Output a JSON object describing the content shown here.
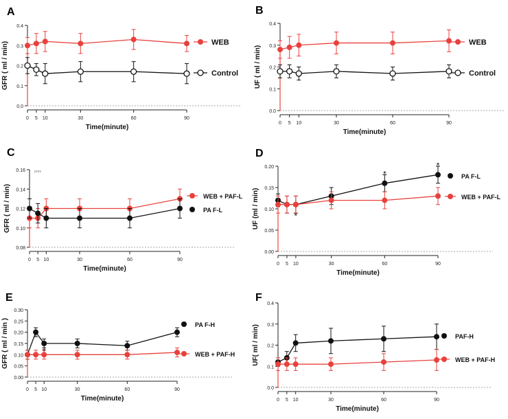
{
  "colors": {
    "red": "#e8413c",
    "black": "#111111",
    "axis": "#222222",
    "baseline": "#888888"
  },
  "chart_data": [
    {
      "panel": "A",
      "type": "line",
      "ylabel": "GFR ( ml / min)",
      "xlabel": "Time(minute)",
      "x": [
        0,
        5,
        10,
        30,
        60,
        90
      ],
      "ylim": [
        0.0,
        0.4
      ],
      "yticks": [
        "0.0",
        "0.1",
        "0.2",
        "0.3",
        "0.4"
      ],
      "xticks": [
        "0",
        "5",
        "10",
        "30",
        "60",
        "90"
      ],
      "annotations": [],
      "series": [
        {
          "name": "WEB",
          "color": "red",
          "marker": "filled",
          "values": [
            0.3,
            0.31,
            0.32,
            0.31,
            0.33,
            0.31
          ],
          "errors": [
            0.04,
            0.05,
            0.05,
            0.05,
            0.05,
            0.04
          ]
        },
        {
          "name": "Control",
          "color": "black",
          "marker": "open",
          "values": [
            0.2,
            0.18,
            0.16,
            0.17,
            0.17,
            0.16
          ],
          "errors": [
            0.04,
            0.03,
            0.05,
            0.05,
            0.05,
            0.05
          ]
        }
      ]
    },
    {
      "panel": "B",
      "type": "line",
      "ylabel": "UF ( ml / min)",
      "xlabel": "Time(minute)",
      "x": [
        0,
        5,
        10,
        30,
        60,
        90
      ],
      "ylim": [
        0.0,
        0.4
      ],
      "yticks": [
        "0.0",
        "0.1",
        "0.2",
        "0.3",
        "0.4"
      ],
      "xticks": [
        "0",
        "5",
        "10",
        "30",
        "60",
        "90"
      ],
      "annotations": [],
      "series": [
        {
          "name": "WEB",
          "color": "red",
          "marker": "filled",
          "values": [
            0.28,
            0.29,
            0.3,
            0.31,
            0.31,
            0.32
          ],
          "errors": [
            0.04,
            0.05,
            0.05,
            0.05,
            0.05,
            0.05
          ]
        },
        {
          "name": "Control",
          "color": "black",
          "marker": "open",
          "values": [
            0.18,
            0.18,
            0.17,
            0.18,
            0.17,
            0.18
          ],
          "errors": [
            0.03,
            0.03,
            0.03,
            0.03,
            0.03,
            0.03
          ]
        }
      ]
    },
    {
      "panel": "C",
      "type": "line",
      "ylabel": "GFR ( ml / min)",
      "xlabel": "Time(minute)",
      "x": [
        0,
        5,
        10,
        30,
        60,
        90
      ],
      "ylim": [
        0.08,
        0.16
      ],
      "yticks": [
        "0.08",
        "0.10",
        "0.12",
        "0.14",
        "0.16"
      ],
      "xticks": [
        "0",
        "5",
        "10",
        "30",
        "60",
        "90"
      ],
      "annotations": [
        {
          "text": "pres",
          "x": 5,
          "y": 0.157
        }
      ],
      "series": [
        {
          "name": "WEB + PAF-L",
          "color": "red",
          "marker": "filled",
          "values": [
            0.11,
            0.11,
            0.12,
            0.12,
            0.12,
            0.13
          ],
          "errors": [
            0.01,
            0.01,
            0.01,
            0.01,
            0.01,
            0.01
          ]
        },
        {
          "name": "PA F-L",
          "color": "black",
          "marker": "filled",
          "values": [
            0.12,
            0.115,
            0.11,
            0.11,
            0.11,
            0.12
          ],
          "errors": [
            0.01,
            0.01,
            0.01,
            0.01,
            0.01,
            0.01
          ]
        }
      ]
    },
    {
      "panel": "D",
      "type": "line",
      "ylabel": "UF (ml / min)",
      "xlabel": "Time(minute)",
      "x": [
        0,
        5,
        10,
        30,
        60,
        90
      ],
      "ylim": [
        0.0,
        0.2
      ],
      "yticks": [
        "0.00",
        "0.05",
        "0.10",
        "0.15",
        "0.20"
      ],
      "xticks": [
        "0",
        "5",
        "10",
        "30",
        "60",
        "90"
      ],
      "annotations": [
        {
          "text": "*",
          "x": 10,
          "y": 0.085
        },
        {
          "text": "*",
          "x": 60,
          "y": 0.183
        },
        {
          "text": "*",
          "x": 90,
          "y": 0.203
        }
      ],
      "series": [
        {
          "name": "PA F-L",
          "color": "black",
          "marker": "filled",
          "values": [
            0.12,
            0.11,
            0.11,
            0.13,
            0.16,
            0.18
          ],
          "errors": [
            0.015,
            0.02,
            0.02,
            0.02,
            0.02,
            0.02
          ]
        },
        {
          "name": "WEB + PAF-L",
          "color": "red",
          "marker": "filled",
          "values": [
            0.11,
            0.11,
            0.11,
            0.12,
            0.12,
            0.13
          ],
          "errors": [
            0.02,
            0.02,
            0.02,
            0.02,
            0.02,
            0.02
          ]
        }
      ]
    },
    {
      "panel": "E",
      "type": "line",
      "ylabel": "GFR ( ml / min )",
      "xlabel": "Time(minute)",
      "x": [
        0,
        5,
        10,
        30,
        60,
        90
      ],
      "ylim": [
        0.0,
        0.3
      ],
      "yticks": [
        "0.00",
        "0.05",
        "0.10",
        "0.15",
        "0.20",
        "0.25",
        "0.30"
      ],
      "xticks": [
        "0",
        "5",
        "10",
        "30",
        "60",
        "90"
      ],
      "annotations": [
        {
          "text": "*",
          "x": 10,
          "y": 0.118
        }
      ],
      "series": [
        {
          "name": "PA F-H",
          "color": "black",
          "marker": "filled",
          "values": [
            0.1,
            0.2,
            0.15,
            0.15,
            0.14,
            0.2
          ],
          "errors": [
            0.02,
            0.02,
            0.02,
            0.02,
            0.02,
            0.02
          ]
        },
        {
          "name": "WEB + PAF-H",
          "color": "red",
          "marker": "filled",
          "values": [
            0.1,
            0.1,
            0.1,
            0.1,
            0.1,
            0.11
          ],
          "errors": [
            0.02,
            0.02,
            0.02,
            0.02,
            0.02,
            0.02
          ]
        }
      ]
    },
    {
      "panel": "F",
      "type": "line",
      "ylabel": "UF( ml / min)",
      "xlabel": "Time(minute)",
      "x": [
        0,
        5,
        10,
        30,
        60,
        90
      ],
      "ylim": [
        0.0,
        0.4
      ],
      "yticks": [
        "0.0",
        "0.1",
        "0.2",
        "0.3",
        "0.4"
      ],
      "xticks": [
        "0",
        "5",
        "10",
        "30",
        "60",
        "90"
      ],
      "annotations": [],
      "series": [
        {
          "name": "PAF-H",
          "color": "black",
          "marker": "filled",
          "values": [
            0.12,
            0.14,
            0.21,
            0.22,
            0.23,
            0.24
          ],
          "errors": [
            0.02,
            0.03,
            0.04,
            0.06,
            0.06,
            0.06
          ]
        },
        {
          "name": "WEB + PAF-H",
          "color": "red",
          "marker": "filled",
          "values": [
            0.11,
            0.11,
            0.11,
            0.11,
            0.12,
            0.13
          ],
          "errors": [
            0.03,
            0.03,
            0.03,
            0.03,
            0.04,
            0.05
          ]
        }
      ]
    }
  ]
}
